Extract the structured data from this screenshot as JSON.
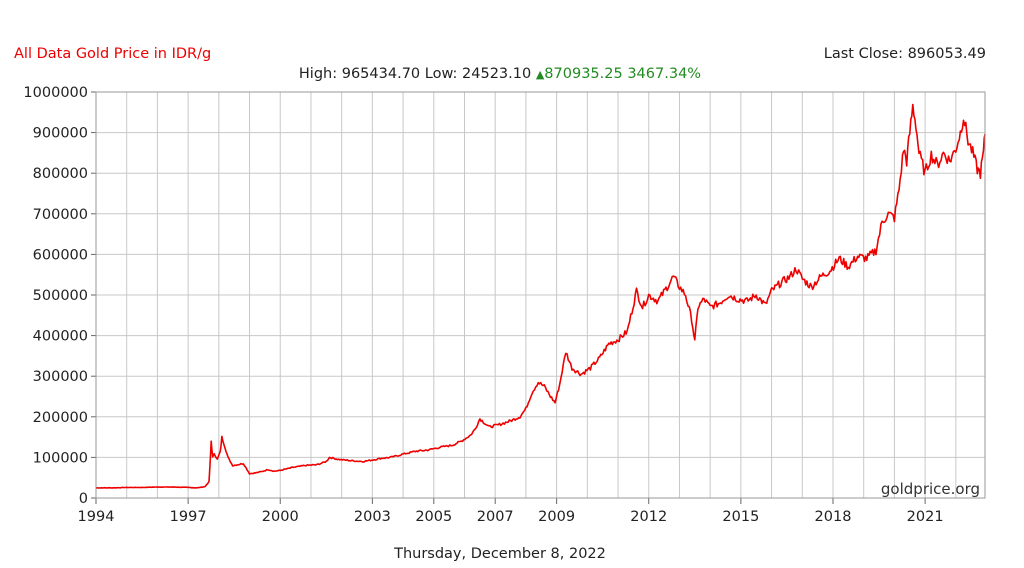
{
  "header": {
    "title": "All Data Gold Price in IDR/g",
    "last_close_label": "Last Close:",
    "last_close_value": "896053.49",
    "high_label": "High:",
    "high_value": "965434.70",
    "low_label": "Low:",
    "low_value": "24523.10",
    "change_value": "870935.25",
    "change_pct": "3467.34%",
    "watermark": "goldprice.org",
    "date": "Thursday, December 8, 2022"
  },
  "colors": {
    "series": "#ee0000",
    "title": "#ee0000",
    "change": "#228b22",
    "grid": "#c8c8c8",
    "text": "#222222"
  },
  "chart_data": {
    "type": "line",
    "title": "All Data Gold Price in IDR/g",
    "xlabel": "",
    "ylabel": "",
    "ylim": [
      0,
      1000000
    ],
    "y_ticks": [
      0,
      100000,
      200000,
      300000,
      400000,
      500000,
      600000,
      700000,
      800000,
      900000,
      1000000
    ],
    "x_tick_labels": [
      "1994",
      "1997",
      "2000",
      "2003",
      "2005",
      "2007",
      "2009",
      "2012",
      "2015",
      "2018",
      "2021"
    ],
    "x_tick_years": [
      1994.0,
      1997.0,
      2000.0,
      2003.0,
      2005.0,
      2007.0,
      2009.0,
      2012.0,
      2015.0,
      2018.0,
      2021.0
    ],
    "xlim": [
      1994.0,
      2022.95
    ],
    "grid": true,
    "series": [
      {
        "name": "",
        "x": [
          1994.0,
          1994.5,
          1995.0,
          1995.5,
          1996.0,
          1996.5,
          1997.0,
          1997.3,
          1997.55,
          1997.68,
          1997.72,
          1997.75,
          1997.8,
          1997.85,
          1997.95,
          1998.05,
          1998.1,
          1998.2,
          1998.3,
          1998.45,
          1998.6,
          1998.8,
          1999.0,
          1999.2,
          1999.4,
          1999.6,
          1999.8,
          2000.0,
          2000.4,
          2000.8,
          2001.2,
          2001.5,
          2001.6,
          2001.9,
          2002.3,
          2002.7,
          2003.1,
          2003.3,
          2003.6,
          2004.0,
          2004.4,
          2004.8,
          2005.2,
          2005.6,
          2005.9,
          2006.2,
          2006.35,
          2006.5,
          2006.8,
          2007.1,
          2007.5,
          2007.8,
          2008.0,
          2008.2,
          2008.4,
          2008.6,
          2008.8,
          2008.95,
          2009.1,
          2009.3,
          2009.5,
          2009.8,
          2010.1,
          2010.4,
          2010.7,
          2011.0,
          2011.3,
          2011.6,
          2011.8,
          2012.0,
          2012.3,
          2012.6,
          2012.8,
          2013.0,
          2013.2,
          2013.4,
          2013.5,
          2013.6,
          2013.8,
          2014.0,
          2014.3,
          2014.6,
          2014.9,
          2015.2,
          2015.5,
          2015.8,
          2016.0,
          2016.3,
          2016.6,
          2016.8,
          2017.0,
          2017.3,
          2017.6,
          2017.9,
          2018.2,
          2018.5,
          2018.8,
          2019.1,
          2019.4,
          2019.6,
          2019.8,
          2020.0,
          2020.15,
          2020.3,
          2020.4,
          2020.5,
          2020.6,
          2020.7,
          2020.8,
          2021.0,
          2021.2,
          2021.4,
          2021.6,
          2021.8,
          2022.0,
          2022.15,
          2022.25,
          2022.4,
          2022.55,
          2022.7,
          2022.8,
          2022.9,
          2022.95
        ],
        "y": [
          25000,
          25000,
          26000,
          26000,
          27000,
          27000,
          26000,
          25000,
          28000,
          40000,
          90000,
          140000,
          100000,
          110000,
          95000,
          115000,
          150000,
          125000,
          100000,
          80000,
          82000,
          85000,
          60000,
          62000,
          65000,
          70000,
          66000,
          68000,
          75000,
          80000,
          82000,
          90000,
          100000,
          95000,
          92000,
          90000,
          95000,
          98000,
          100000,
          108000,
          115000,
          118000,
          125000,
          130000,
          140000,
          155000,
          170000,
          195000,
          175000,
          180000,
          190000,
          200000,
          220000,
          260000,
          285000,
          275000,
          250000,
          235000,
          280000,
          360000,
          320000,
          305000,
          320000,
          345000,
          380000,
          390000,
          410000,
          510000,
          470000,
          500000,
          485000,
          520000,
          545000,
          520000,
          500000,
          440000,
          385000,
          470000,
          490000,
          470000,
          480000,
          500000,
          490000,
          485000,
          500000,
          475000,
          510000,
          530000,
          545000,
          565000,
          540000,
          520000,
          545000,
          560000,
          590000,
          570000,
          595000,
          590000,
          610000,
          680000,
          700000,
          690000,
          760000,
          860000,
          830000,
          900000,
          965000,
          920000,
          850000,
          800000,
          845000,
          820000,
          850000,
          830000,
          860000,
          900000,
          940000,
          880000,
          850000,
          810000,
          800000,
          850000,
          896053
        ]
      }
    ]
  }
}
